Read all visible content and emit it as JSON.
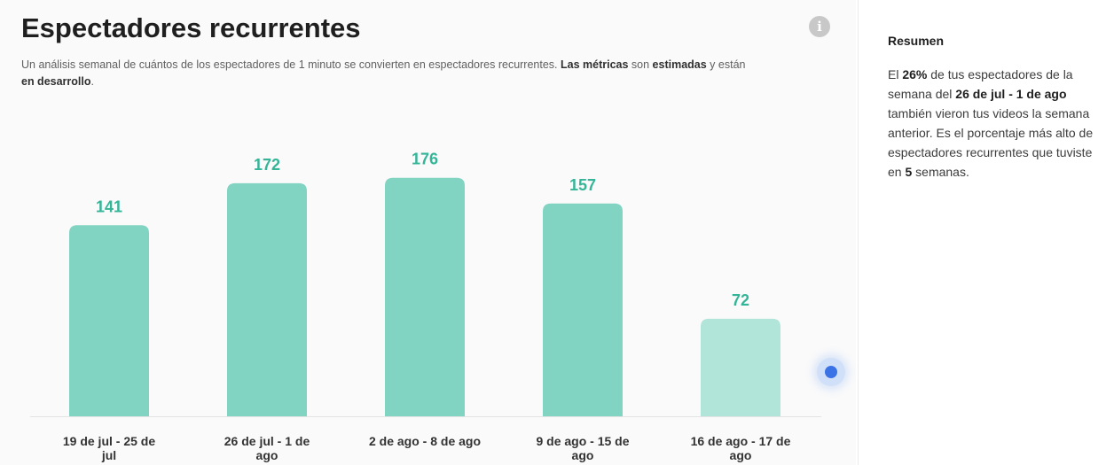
{
  "header": {
    "title": "Espectadores recurrentes",
    "info_icon": "info-icon",
    "subtitle_plain": "Un análisis semanal de cuántos de los espectadores de 1 minuto se convierten en espectadores recurrentes. ",
    "subtitle_bold_1": "Las métricas",
    "subtitle_plain_2": " son ",
    "subtitle_bold_2": "estimadas",
    "subtitle_plain_3": " y están ",
    "subtitle_bold_3": "en desarrollo",
    "subtitle_plain_4": "."
  },
  "summary": {
    "title": "Resumen",
    "t1": "El ",
    "b1": "26%",
    "t2": " de tus espectadores de la semana del ",
    "b2": "26 de jul - 1 de ago",
    "t3": " también vieron tus videos la semana anterior. Es el porcentaje más alto de espectadores recurrentes que tuviste en ",
    "b3": "5",
    "t4": " semanas."
  },
  "colors": {
    "bar": "#81d4c2",
    "bar_partial": "#b2e5da",
    "data_label": "#34b597",
    "scroll_dot": "#3a73e6"
  },
  "chart_data": {
    "type": "bar",
    "title": "Espectadores recurrentes",
    "xlabel": "",
    "ylabel": "",
    "categories": [
      "19 de jul - 25 de jul",
      "26 de jul - 1 de ago",
      "2 de ago - 8 de ago",
      "9 de ago - 15 de ago",
      "16 de ago - 17 de ago"
    ],
    "values": [
      141,
      172,
      176,
      157,
      72
    ],
    "partial": [
      false,
      false,
      false,
      false,
      true
    ],
    "ylim": [
      0,
      200
    ],
    "grid": false,
    "legend": "none"
  }
}
